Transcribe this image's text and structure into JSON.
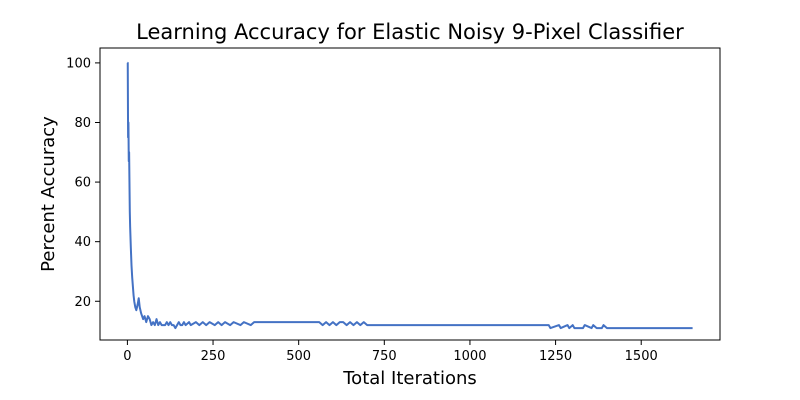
{
  "chart_data": {
    "type": "line",
    "title": "Learning Accuracy for Elastic Noisy 9-Pixel Classifier",
    "xlabel": "Total Iterations",
    "ylabel": "Percent Accuracy",
    "xlim": [
      -80,
      1730
    ],
    "ylim": [
      7,
      105
    ],
    "xticks": [
      0,
      250,
      500,
      750,
      1000,
      1250,
      1500
    ],
    "yticks": [
      20,
      40,
      60,
      80,
      100
    ],
    "grid": false,
    "legend": "none",
    "line_color": "#4472c4",
    "series": [
      {
        "x": [
          0,
          1,
          2,
          3,
          4,
          5,
          6,
          7,
          8,
          10,
          12,
          14,
          16,
          18,
          20,
          23,
          26,
          30,
          33,
          36,
          38,
          40,
          43,
          46,
          50,
          55,
          60,
          65,
          70,
          75,
          80,
          85,
          90,
          95,
          100,
          105,
          110,
          115,
          120,
          125,
          130,
          135,
          140,
          145,
          150,
          155,
          160,
          165,
          170,
          180,
          185,
          200,
          210,
          220,
          230,
          240,
          255,
          265,
          275,
          285,
          300,
          310,
          330,
          340,
          360,
          370,
          380,
          450,
          500,
          560,
          570,
          580,
          590,
          600,
          610,
          620,
          630,
          640,
          650,
          660,
          670,
          680,
          690,
          700,
          710,
          720,
          800,
          900,
          1000,
          1100,
          1200,
          1230,
          1235,
          1260,
          1265,
          1285,
          1290,
          1300,
          1305,
          1330,
          1335,
          1355,
          1360,
          1370,
          1380,
          1385,
          1390,
          1400,
          1450,
          1500,
          1550,
          1600,
          1650
        ],
        "y": [
          100,
          100,
          75,
          80,
          67,
          70,
          60,
          50,
          45,
          38,
          32,
          28,
          25,
          22,
          20,
          18,
          17,
          19,
          21,
          18,
          17,
          16,
          15,
          14,
          15,
          13,
          15,
          14,
          12,
          13,
          12,
          14,
          12,
          13,
          12,
          12,
          12,
          13,
          12,
          13,
          12,
          12,
          11,
          12,
          13,
          12,
          12,
          13,
          12,
          13,
          12,
          13,
          12,
          13,
          12,
          13,
          12,
          13,
          12,
          13,
          12,
          13,
          12,
          13,
          12,
          13,
          13,
          13,
          13,
          13,
          12,
          13,
          12,
          13,
          12,
          13,
          13,
          12,
          13,
          12,
          13,
          12,
          13,
          12,
          12,
          12,
          12,
          12,
          12,
          12,
          12,
          12,
          11,
          12,
          11,
          12,
          11,
          12,
          11,
          11,
          12,
          11,
          12,
          11,
          11,
          11,
          12,
          11,
          11,
          11,
          11,
          11,
          11
        ]
      }
    ]
  }
}
